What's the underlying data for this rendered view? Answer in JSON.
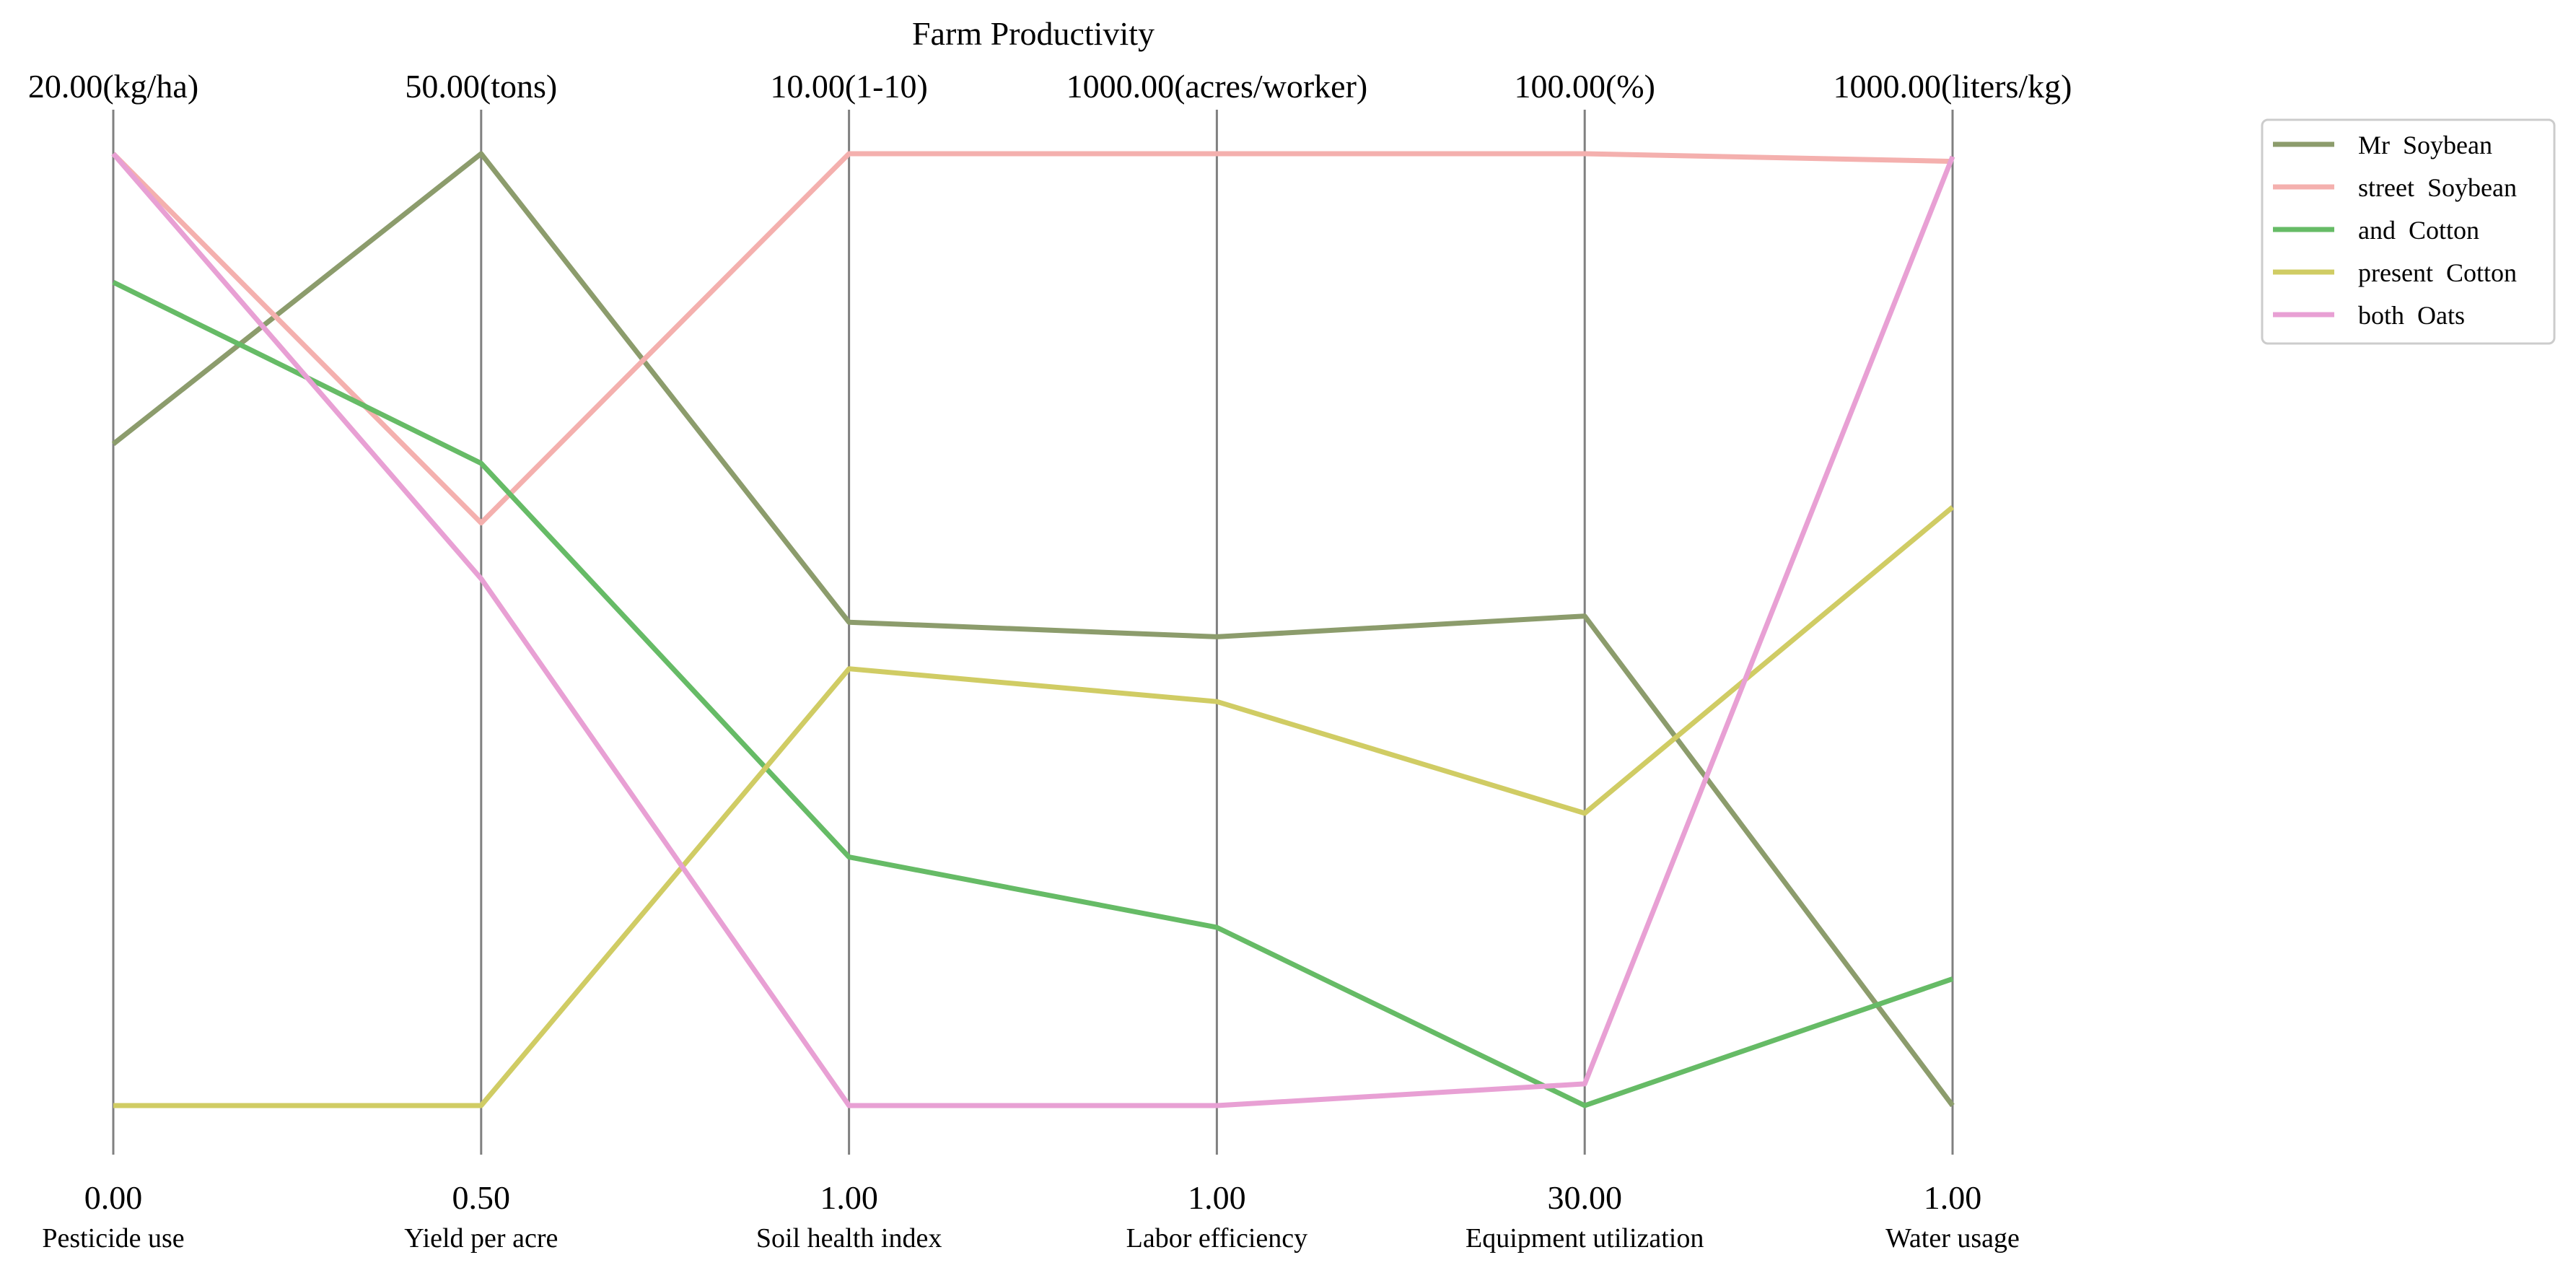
{
  "chart_data": {
    "type": "parallel-coordinates",
    "title": "Farm Productivity",
    "axes": [
      {
        "label": "Pesticide use",
        "min_label": "0.00",
        "max_label": "20.00(kg/ha)",
        "min": 0,
        "max": 20
      },
      {
        "label": "Yield per acre",
        "min_label": "0.50",
        "max_label": "50.00(tons)",
        "min": 0.5,
        "max": 50
      },
      {
        "label": "Soil health index",
        "min_label": "1.00",
        "max_label": "10.00(1-10)",
        "min": 1,
        "max": 10
      },
      {
        "label": "Labor efficiency",
        "min_label": "1.00",
        "max_label": "1000.00(acres/worker)",
        "min": 1,
        "max": 1000
      },
      {
        "label": "Equipment utilization",
        "min_label": "30.00",
        "max_label": "100.00(%)",
        "min": 30,
        "max": 100
      },
      {
        "label": "Water usage",
        "min_label": "1.00",
        "max_label": "1000.00(liters/kg)",
        "min": 1,
        "max": 1000
      }
    ],
    "series": [
      {
        "name": "Mr  Soybean",
        "color": "#8c9c6c",
        "values": [
          13.9,
          50.0,
          5.57,
          493,
          66.0,
          1.0
        ]
      },
      {
        "name": "street  Soybean",
        "color": "#f4b0ae",
        "values": [
          20.0,
          30.8,
          10.0,
          1000,
          100.0,
          992
        ]
      },
      {
        "name": "and  Cotton",
        "color": "#66bb66",
        "values": [
          17.3,
          33.9,
          3.35,
          188,
          30.0,
          134
        ]
      },
      {
        "name": "present  Cotton",
        "color": "#d0cc64",
        "values": [
          0.0,
          0.5,
          5.13,
          425,
          51.5,
          629
        ]
      },
      {
        "name": "both  Oats",
        "color": "#e8a0d4",
        "values": [
          20.0,
          27.9,
          1.0,
          1,
          31.6,
          997
        ]
      }
    ],
    "legend_position": "top-right",
    "grid": false
  }
}
